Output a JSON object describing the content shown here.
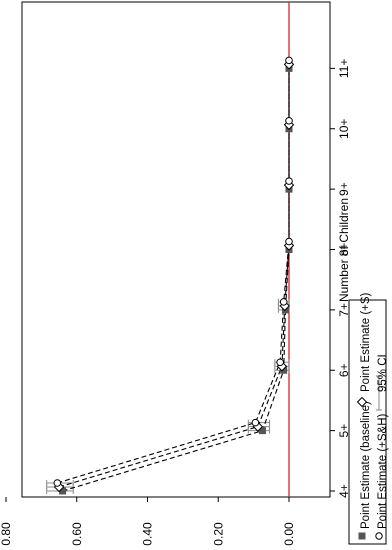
{
  "chart_data": {
    "type": "line",
    "orientation": "rotated-90-ccw",
    "xlabel": "Number of Children",
    "ylabel": "",
    "categories": [
      "4+",
      "5+",
      "6+",
      "7+",
      "8+",
      "9+",
      "10+",
      "11+"
    ],
    "ylim": [
      -0.03,
      0.75
    ],
    "yticks": [
      "0.80",
      "0.60",
      "0.40",
      "0.20",
      "0.00"
    ],
    "ytick_values": [
      0.8,
      0.6,
      0.4,
      0.2,
      0.0
    ],
    "reference_line": {
      "value": 0,
      "color": "#d62728"
    },
    "series": [
      {
        "name": "Point Estimate (baseline)",
        "marker": "square",
        "values": [
          0.64,
          0.075,
          0.015,
          0.01,
          0.0,
          0.0,
          0.0,
          0.0
        ]
      },
      {
        "name": "Point Estimate (+S)",
        "marker": "diamond",
        "values": [
          0.65,
          0.088,
          0.02,
          0.012,
          0.0,
          0.0,
          0.0,
          0.0
        ]
      },
      {
        "name": "Point Estimate (+S&H)",
        "marker": "circle",
        "values": [
          0.655,
          0.095,
          0.025,
          0.015,
          0.0,
          0.0,
          0.0,
          0.0
        ]
      }
    ],
    "ci": {
      "name": "95% CI",
      "lower": [
        0.61,
        0.055,
        0.0,
        0.0,
        -0.005,
        -0.005,
        -0.005,
        -0.005
      ],
      "upper": [
        0.685,
        0.115,
        0.04,
        0.03,
        0.005,
        0.005,
        0.005,
        0.005
      ]
    },
    "legend": {
      "placement": "bottom",
      "items": [
        {
          "label": "Point Estimate (baseline)",
          "symbol": "square"
        },
        {
          "label": "Point Estimate (+S)",
          "symbol": "diamond"
        },
        {
          "label": "Point Estimate (+S&H)",
          "symbol": "circle"
        },
        {
          "label": "95% CI",
          "symbol": "ci"
        }
      ]
    },
    "grid": false
  }
}
